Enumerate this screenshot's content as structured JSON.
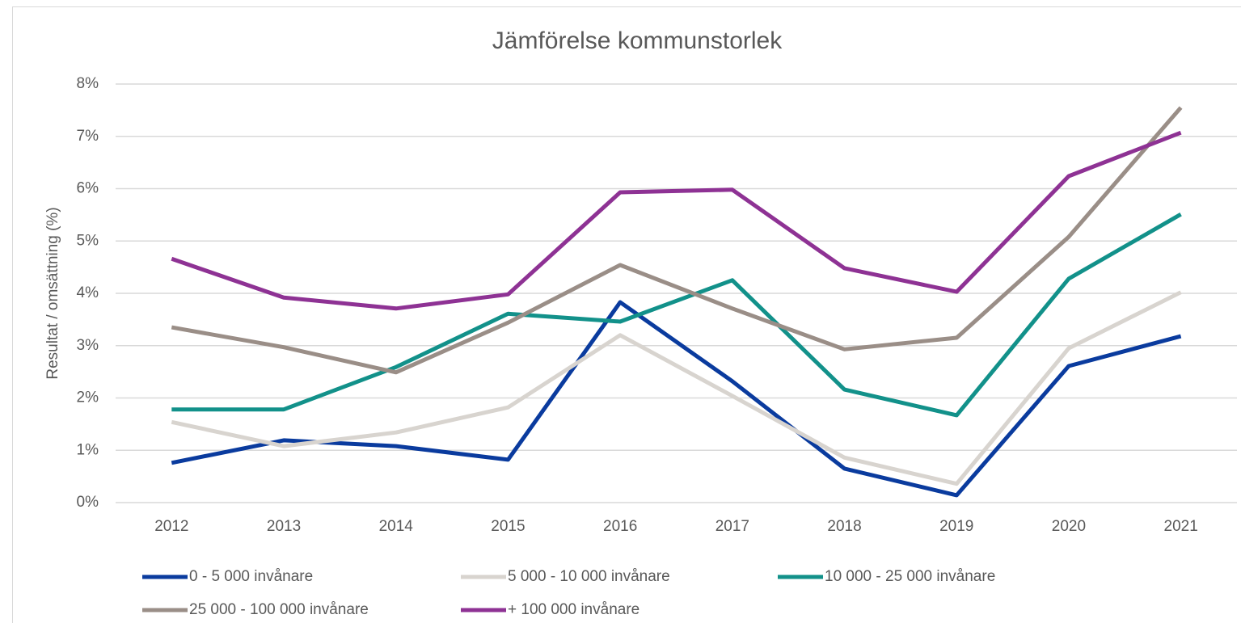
{
  "chart_data": {
    "type": "line",
    "title": "Jämförelse kommunstorlek",
    "ylabel": "Resultat / omsättning (%)",
    "categories": [
      "2012",
      "2013",
      "2014",
      "2015",
      "2016",
      "2017",
      "2018",
      "2019",
      "2020",
      "2021"
    ],
    "series": [
      {
        "name": "0 - 5 000 invånare",
        "color": "#0a3b9e",
        "values": [
          0.76,
          1.19,
          1.08,
          0.82,
          3.83,
          2.32,
          0.65,
          0.14,
          2.61,
          3.18
        ]
      },
      {
        "name": "5 000 - 10 000 invånare",
        "color": "#d8d4cf",
        "values": [
          1.54,
          1.08,
          1.34,
          1.82,
          3.2,
          2.04,
          0.86,
          0.36,
          2.95,
          4.02
        ]
      },
      {
        "name": "10 000 - 25 000 invånare",
        "color": "#12918a",
        "values": [
          1.78,
          1.78,
          2.59,
          3.61,
          3.46,
          4.25,
          2.16,
          1.67,
          4.28,
          5.51
        ]
      },
      {
        "name": "25 000 - 100 000 invånare",
        "color": "#9a8e87",
        "values": [
          3.35,
          2.97,
          2.49,
          3.44,
          4.54,
          3.71,
          2.93,
          3.15,
          5.08,
          7.55
        ]
      },
      {
        "name": "+ 100 000 invånare",
        "color": "#8e3294",
        "values": [
          4.66,
          3.92,
          3.71,
          3.98,
          5.93,
          5.98,
          4.48,
          4.03,
          6.24,
          7.07
        ]
      }
    ],
    "ylim": [
      0,
      8
    ],
    "yticks": [
      {
        "value": 0,
        "label": "0%"
      },
      {
        "value": 1,
        "label": "1%"
      },
      {
        "value": 2,
        "label": "2%"
      },
      {
        "value": 3,
        "label": "3%"
      },
      {
        "value": 4,
        "label": "4%"
      },
      {
        "value": 5,
        "label": "5%"
      },
      {
        "value": 6,
        "label": "6%"
      },
      {
        "value": 7,
        "label": "7%"
      },
      {
        "value": 8,
        "label": "8%"
      }
    ],
    "grid": true,
    "legend": "bottom"
  }
}
